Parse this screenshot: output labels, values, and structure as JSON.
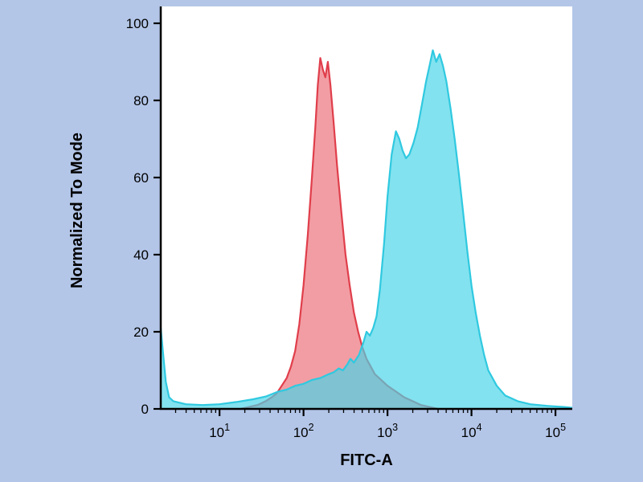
{
  "colors": {
    "canvas_background": "#b3c6e8",
    "plot_background": "#ffffff",
    "axis": "#000000",
    "text": "#000000"
  },
  "chart_data": {
    "type": "area",
    "subtype": "flow-cytometry-histogram",
    "title": "",
    "xlabel": "FITC-A",
    "ylabel": "Normalized To Mode",
    "x_scale": "log10",
    "x_range_log10": [
      0.3,
      5.2
    ],
    "ylim": [
      0,
      100
    ],
    "grid": false,
    "legend": "none",
    "y_ticks": [
      0,
      20,
      40,
      60,
      80,
      100
    ],
    "x_tick_base": "10",
    "x_tick_exponents": [
      1,
      2,
      3,
      4,
      5
    ],
    "series": [
      {
        "name": "red-population",
        "fill": "rgba(231,76,88,0.55)",
        "stroke": "#e03e4b",
        "stroke_width": 2.2,
        "points": [
          [
            1.25,
            0
          ],
          [
            1.35,
            0.5
          ],
          [
            1.45,
            1
          ],
          [
            1.55,
            2
          ],
          [
            1.62,
            3
          ],
          [
            1.68,
            4
          ],
          [
            1.74,
            6
          ],
          [
            1.8,
            8
          ],
          [
            1.85,
            11
          ],
          [
            1.9,
            15
          ],
          [
            1.95,
            22
          ],
          [
            2.0,
            32
          ],
          [
            2.05,
            45
          ],
          [
            2.1,
            60
          ],
          [
            2.14,
            73
          ],
          [
            2.17,
            84
          ],
          [
            2.2,
            91
          ],
          [
            2.23,
            88
          ],
          [
            2.26,
            86
          ],
          [
            2.29,
            90
          ],
          [
            2.32,
            84
          ],
          [
            2.36,
            74
          ],
          [
            2.4,
            63
          ],
          [
            2.45,
            51
          ],
          [
            2.5,
            40
          ],
          [
            2.55,
            32
          ],
          [
            2.6,
            25
          ],
          [
            2.65,
            20
          ],
          [
            2.7,
            16
          ],
          [
            2.75,
            13
          ],
          [
            2.8,
            11
          ],
          [
            2.85,
            9
          ],
          [
            2.9,
            8
          ],
          [
            2.95,
            7
          ],
          [
            3.0,
            6
          ],
          [
            3.1,
            4.5
          ],
          [
            3.2,
            3
          ],
          [
            3.3,
            2
          ],
          [
            3.4,
            1
          ],
          [
            3.5,
            0.5
          ],
          [
            3.6,
            0
          ]
        ]
      },
      {
        "name": "cyan-population",
        "fill": "rgba(72,212,232,0.68)",
        "stroke": "#2fc9e0",
        "stroke_width": 2.2,
        "points": [
          [
            0.3,
            21
          ],
          [
            0.33,
            14
          ],
          [
            0.36,
            7
          ],
          [
            0.4,
            3
          ],
          [
            0.45,
            2
          ],
          [
            0.6,
            1.2
          ],
          [
            0.8,
            1
          ],
          [
            1.0,
            1.2
          ],
          [
            1.2,
            1.8
          ],
          [
            1.4,
            2.5
          ],
          [
            1.55,
            3.2
          ],
          [
            1.7,
            4.5
          ],
          [
            1.8,
            5
          ],
          [
            1.9,
            6
          ],
          [
            2.0,
            6.5
          ],
          [
            2.1,
            7.5
          ],
          [
            2.2,
            8
          ],
          [
            2.3,
            9
          ],
          [
            2.36,
            9.5
          ],
          [
            2.42,
            10.5
          ],
          [
            2.47,
            10
          ],
          [
            2.52,
            11.5
          ],
          [
            2.56,
            13
          ],
          [
            2.6,
            12
          ],
          [
            2.66,
            14
          ],
          [
            2.71,
            17
          ],
          [
            2.75,
            20
          ],
          [
            2.79,
            19
          ],
          [
            2.83,
            21
          ],
          [
            2.87,
            24
          ],
          [
            2.91,
            31
          ],
          [
            2.96,
            43
          ],
          [
            3.0,
            55
          ],
          [
            3.05,
            66
          ],
          [
            3.1,
            72
          ],
          [
            3.14,
            70
          ],
          [
            3.18,
            67
          ],
          [
            3.22,
            65
          ],
          [
            3.26,
            66
          ],
          [
            3.31,
            69
          ],
          [
            3.36,
            73
          ],
          [
            3.41,
            79
          ],
          [
            3.46,
            85
          ],
          [
            3.5,
            89
          ],
          [
            3.54,
            93
          ],
          [
            3.58,
            90
          ],
          [
            3.62,
            92
          ],
          [
            3.66,
            89
          ],
          [
            3.7,
            85
          ],
          [
            3.75,
            78
          ],
          [
            3.8,
            70
          ],
          [
            3.85,
            61
          ],
          [
            3.9,
            51
          ],
          [
            3.95,
            41
          ],
          [
            4.0,
            32
          ],
          [
            4.05,
            25
          ],
          [
            4.1,
            19
          ],
          [
            4.15,
            14
          ],
          [
            4.2,
            10
          ],
          [
            4.3,
            6
          ],
          [
            4.4,
            3.5
          ],
          [
            4.55,
            2
          ],
          [
            4.7,
            1.2
          ],
          [
            4.9,
            0.8
          ],
          [
            5.1,
            0.5
          ],
          [
            5.2,
            0.3
          ]
        ]
      }
    ]
  }
}
